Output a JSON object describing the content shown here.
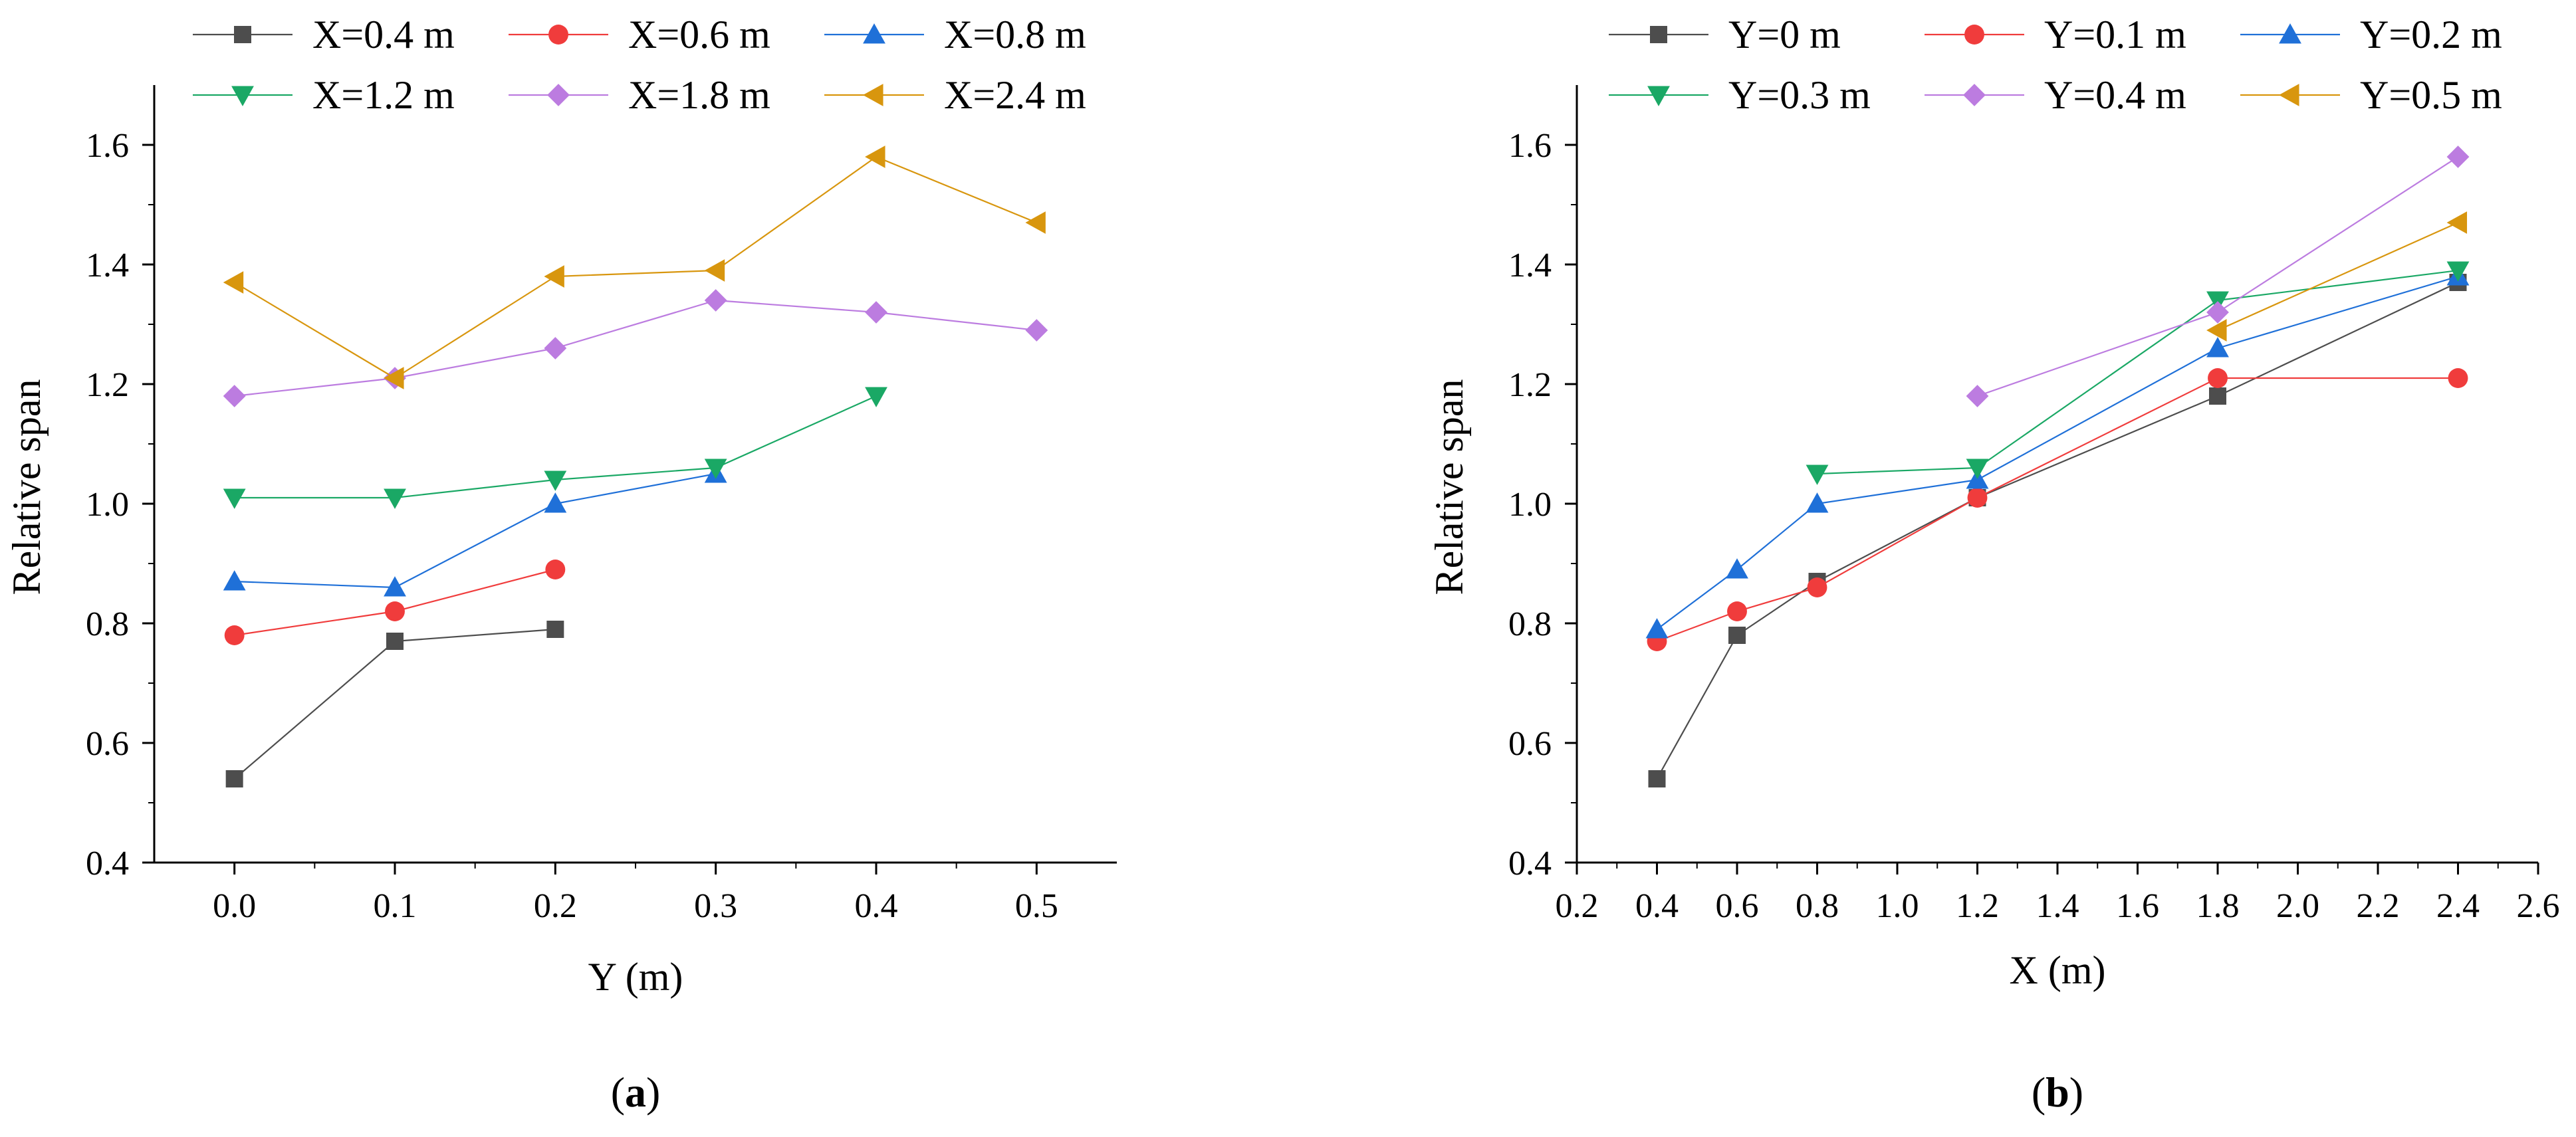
{
  "chart_data": [
    {
      "type": "line",
      "panel_label": "(a)",
      "panel_letter": "a",
      "xlabel": "Y (m)",
      "ylabel": "Relative span",
      "xlim": [
        -0.05,
        0.55
      ],
      "ylim": [
        0.4,
        1.7
      ],
      "xticks": [
        0.0,
        0.1,
        0.2,
        0.3,
        0.4,
        0.5
      ],
      "xtick_labels": [
        "0.0",
        "0.1",
        "0.2",
        "0.3",
        "0.4",
        "0.5"
      ],
      "yticks": [
        0.4,
        0.6,
        0.8,
        1.0,
        1.2,
        1.4,
        1.6
      ],
      "ytick_labels": [
        "0.4",
        "0.6",
        "0.8",
        "1.0",
        "1.2",
        "1.4",
        "1.6"
      ],
      "legend_position": "top",
      "series": [
        {
          "name": "X=0.4 m",
          "color": "#4d4d4d",
          "marker": "square",
          "x": [
            0.0,
            0.1,
            0.2
          ],
          "y": [
            0.54,
            0.77,
            0.79
          ]
        },
        {
          "name": "X=0.6 m",
          "color": "#f03c3c",
          "marker": "circle",
          "x": [
            0.0,
            0.1,
            0.2
          ],
          "y": [
            0.78,
            0.82,
            0.89
          ]
        },
        {
          "name": "X=0.8 m",
          "color": "#1f70d8",
          "marker": "triangle-up",
          "x": [
            0.0,
            0.1,
            0.2,
            0.3
          ],
          "y": [
            0.87,
            0.86,
            1.0,
            1.05
          ]
        },
        {
          "name": "X=1.2 m",
          "color": "#1aa865",
          "marker": "triangle-down",
          "x": [
            0.0,
            0.1,
            0.2,
            0.3,
            0.4
          ],
          "y": [
            1.01,
            1.01,
            1.04,
            1.06,
            1.18
          ]
        },
        {
          "name": "X=1.8 m",
          "color": "#bc7ce0",
          "marker": "diamond",
          "x": [
            0.0,
            0.1,
            0.2,
            0.3,
            0.4,
            0.5
          ],
          "y": [
            1.18,
            1.21,
            1.26,
            1.34,
            1.32,
            1.29
          ]
        },
        {
          "name": "X=2.4 m",
          "color": "#d8960e",
          "marker": "triangle-left",
          "x": [
            0.0,
            0.1,
            0.2,
            0.3,
            0.4,
            0.5
          ],
          "y": [
            1.37,
            1.21,
            1.38,
            1.39,
            1.58,
            1.47
          ]
        }
      ]
    },
    {
      "type": "line",
      "panel_label": "(b)",
      "panel_letter": "b",
      "xlabel": "X (m)",
      "ylabel": "Relative span",
      "xlim": [
        0.2,
        2.6
      ],
      "ylim": [
        0.4,
        1.7
      ],
      "xticks": [
        0.2,
        0.4,
        0.6,
        0.8,
        1.0,
        1.2,
        1.4,
        1.6,
        1.8,
        2.0,
        2.2,
        2.4,
        2.6
      ],
      "xtick_labels": [
        "0.2",
        "0.4",
        "0.6",
        "0.8",
        "1.0",
        "1.2",
        "1.4",
        "1.6",
        "1.8",
        "2.0",
        "2.2",
        "2.4",
        "2.6"
      ],
      "yticks": [
        0.4,
        0.6,
        0.8,
        1.0,
        1.2,
        1.4,
        1.6
      ],
      "ytick_labels": [
        "0.4",
        "0.6",
        "0.8",
        "1.0",
        "1.2",
        "1.4",
        "1.6"
      ],
      "legend_position": "top",
      "series": [
        {
          "name": "Y=0 m",
          "color": "#4d4d4d",
          "marker": "square",
          "x": [
            0.4,
            0.6,
            0.8,
            1.2,
            1.8,
            2.4
          ],
          "y": [
            0.54,
            0.78,
            0.87,
            1.01,
            1.18,
            1.37
          ]
        },
        {
          "name": "Y=0.1 m",
          "color": "#f03c3c",
          "marker": "circle",
          "x": [
            0.4,
            0.6,
            0.8,
            1.2,
            1.8,
            2.4
          ],
          "y": [
            0.77,
            0.82,
            0.86,
            1.01,
            1.21,
            1.21
          ]
        },
        {
          "name": "Y=0.2 m",
          "color": "#1f70d8",
          "marker": "triangle-up",
          "x": [
            0.4,
            0.6,
            0.8,
            1.2,
            1.8,
            2.4
          ],
          "y": [
            0.79,
            0.89,
            1.0,
            1.04,
            1.26,
            1.38
          ]
        },
        {
          "name": "Y=0.3 m",
          "color": "#1aa865",
          "marker": "triangle-down",
          "x": [
            0.8,
            1.2,
            1.8,
            2.4
          ],
          "y": [
            1.05,
            1.06,
            1.34,
            1.39
          ]
        },
        {
          "name": "Y=0.4 m",
          "color": "#bc7ce0",
          "marker": "diamond",
          "x": [
            1.2,
            1.8,
            2.4
          ],
          "y": [
            1.18,
            1.32,
            1.58
          ]
        },
        {
          "name": "Y=0.5 m",
          "color": "#d8960e",
          "marker": "triangle-left",
          "x": [
            1.8,
            2.4
          ],
          "y": [
            1.29,
            1.47
          ]
        }
      ]
    }
  ]
}
